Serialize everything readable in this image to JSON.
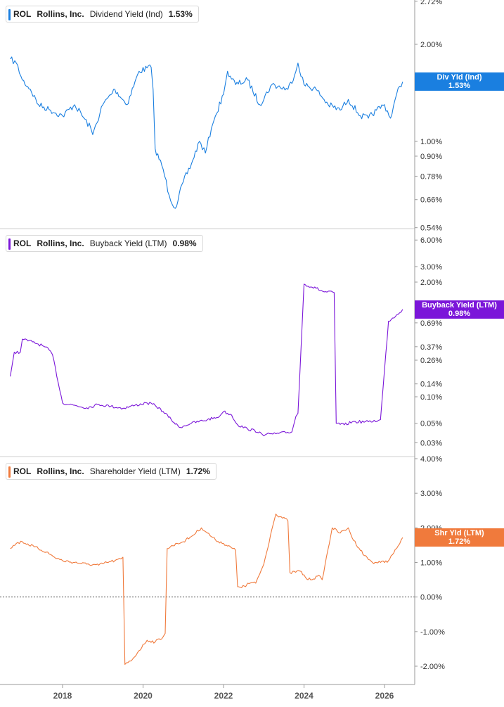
{
  "colors": {
    "div": "#1a7fe0",
    "buy": "#7b16d9",
    "shr": "#f07a3c",
    "grid": "#cfcfcf",
    "axis": "#999999"
  },
  "panels": [
    {
      "ticker": "ROL",
      "name": "Rollins, Inc.",
      "metric": "Dividend Yield (Ind)",
      "value": "1.53%",
      "tag_line1": "Div Yld (Ind)",
      "tag_line2": "1.53%"
    },
    {
      "ticker": "ROL",
      "name": "Rollins, Inc.",
      "metric": "Buyback Yield (LTM)",
      "value": "0.98%",
      "tag_line1": "Buyback Yield (LTM)",
      "tag_line2": "0.98%"
    },
    {
      "ticker": "ROL",
      "name": "Rollins, Inc.",
      "metric": "Shareholder Yield (LTM)",
      "value": "1.72%",
      "tag_line1": "Shr Yld (LTM)",
      "tag_line2": "1.72%"
    }
  ],
  "chart_data": [
    {
      "type": "line",
      "title": "",
      "xlabel": "",
      "ylabel": "",
      "scale": "log",
      "x_ticks": [
        "2018",
        "2020",
        "2022",
        "2024",
        "2026"
      ],
      "y_ticks": [
        "2.72%",
        "2.00%",
        "1.00%",
        "0.90%",
        "0.78%",
        "0.66%",
        "0.54%"
      ],
      "series": [
        {
          "name": "Dividend Yield (Ind)",
          "x": [
            2016.7,
            2016.85,
            2017.0,
            2017.2,
            2017.4,
            2017.7,
            2018.0,
            2018.3,
            2018.7,
            2018.75,
            2019.0,
            2019.3,
            2019.6,
            2019.9,
            2020.2,
            2020.25,
            2020.3,
            2020.5,
            2020.65,
            2020.8,
            2021.0,
            2021.2,
            2021.4,
            2021.55,
            2021.7,
            2021.8,
            2022.0,
            2022.1,
            2022.3,
            2022.6,
            2022.9,
            2023.2,
            2023.6,
            2023.8,
            2023.85,
            2024.0,
            2024.3,
            2024.6,
            2024.9,
            2025.1,
            2025.4,
            2025.6,
            2025.8,
            2026.0,
            2026.15,
            2026.3,
            2026.45
          ],
          "values": [
            1.8,
            1.75,
            1.55,
            1.45,
            1.3,
            1.25,
            1.2,
            1.3,
            1.1,
            1.05,
            1.3,
            1.45,
            1.3,
            1.65,
            1.7,
            1.45,
            0.95,
            0.82,
            0.68,
            0.62,
            0.75,
            0.85,
            1.0,
            0.92,
            1.1,
            1.2,
            1.4,
            1.65,
            1.5,
            1.55,
            1.3,
            1.5,
            1.45,
            1.65,
            1.75,
            1.5,
            1.45,
            1.3,
            1.25,
            1.35,
            1.2,
            1.18,
            1.25,
            1.3,
            1.18,
            1.4,
            1.53
          ]
        }
      ]
    },
    {
      "type": "line",
      "title": "",
      "xlabel": "",
      "ylabel": "",
      "scale": "log",
      "x_ticks": [
        "2018",
        "2020",
        "2022",
        "2024",
        "2026"
      ],
      "y_ticks": [
        "6.00%",
        "3.00%",
        "2.00%",
        "0.69%",
        "0.37%",
        "0.26%",
        "0.14%",
        "0.10%",
        "0.05%",
        "0.03%"
      ],
      "series": [
        {
          "name": "Buyback Yield (LTM)",
          "x": [
            2016.7,
            2016.8,
            2016.95,
            2017.0,
            2017.25,
            2017.5,
            2017.7,
            2017.75,
            2018.0,
            2018.3,
            2018.6,
            2018.9,
            2019.2,
            2019.5,
            2019.8,
            2020.1,
            2020.3,
            2020.5,
            2020.7,
            2020.9,
            2021.2,
            2021.6,
            2021.9,
            2022.0,
            2022.2,
            2022.35,
            2022.6,
            2022.9,
            2023.0,
            2023.15,
            2023.3,
            2023.7,
            2023.8,
            2023.85,
            2024.0,
            2024.3,
            2024.5,
            2024.75,
            2024.8,
            2025.0,
            2025.2,
            2025.6,
            2025.85,
            2025.9,
            2026.1,
            2026.3,
            2026.45
          ],
          "values": [
            0.17,
            0.32,
            0.32,
            0.45,
            0.42,
            0.38,
            0.33,
            0.3,
            0.085,
            0.08,
            0.075,
            0.082,
            0.078,
            0.074,
            0.08,
            0.085,
            0.08,
            0.068,
            0.055,
            0.045,
            0.05,
            0.055,
            0.06,
            0.068,
            0.062,
            0.048,
            0.043,
            0.04,
            0.036,
            0.038,
            0.038,
            0.04,
            0.06,
            0.065,
            1.9,
            1.7,
            1.55,
            1.52,
            0.05,
            0.048,
            0.052,
            0.052,
            0.054,
            0.055,
            0.72,
            0.85,
            0.98
          ]
        }
      ]
    },
    {
      "type": "line",
      "title": "",
      "xlabel": "",
      "ylabel": "",
      "scale": "linear",
      "ylim": [
        -2.2,
        4.0
      ],
      "x_ticks": [
        "2018",
        "2020",
        "2022",
        "2024",
        "2026"
      ],
      "y_ticks": [
        "4.00%",
        "3.00%",
        "2.00%",
        "1.00%",
        "0.00%",
        "-1.00%",
        "-2.00%"
      ],
      "series": [
        {
          "name": "Shareholder Yield (LTM)",
          "x": [
            2016.7,
            2016.85,
            2017.0,
            2017.3,
            2017.6,
            2017.8,
            2018.0,
            2018.3,
            2018.6,
            2018.9,
            2019.1,
            2019.3,
            2019.45,
            2019.5,
            2019.55,
            2019.7,
            2019.9,
            2020.1,
            2020.3,
            2020.5,
            2020.55,
            2020.6,
            2020.85,
            2021.0,
            2021.2,
            2021.45,
            2021.6,
            2021.8,
            2022.0,
            2022.3,
            2022.35,
            2022.55,
            2022.6,
            2022.8,
            2023.0,
            2023.2,
            2023.3,
            2023.6,
            2023.65,
            2023.9,
            2024.1,
            2024.4,
            2024.45,
            2024.7,
            2024.9,
            2025.1,
            2025.2,
            2025.5,
            2025.7,
            2025.9,
            2026.1,
            2026.3,
            2026.45
          ],
          "values": [
            1.4,
            1.55,
            1.6,
            1.45,
            1.3,
            1.15,
            1.05,
            1.0,
            0.95,
            0.92,
            1.0,
            1.05,
            1.1,
            1.15,
            -1.95,
            -1.85,
            -1.55,
            -1.25,
            -1.3,
            -1.15,
            -1.05,
            1.4,
            1.55,
            1.6,
            1.75,
            2.0,
            1.85,
            1.65,
            1.55,
            1.35,
            0.3,
            0.3,
            0.4,
            0.4,
            0.95,
            1.95,
            2.4,
            2.2,
            0.7,
            0.75,
            0.5,
            0.6,
            0.5,
            2.0,
            1.85,
            2.0,
            1.7,
            1.2,
            1.0,
            1.0,
            1.05,
            1.4,
            1.72
          ]
        }
      ]
    }
  ]
}
